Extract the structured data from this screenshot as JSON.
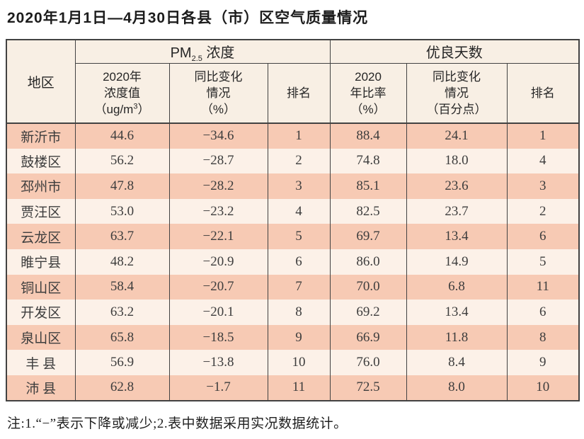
{
  "title": "2020年1月1日—4月30日各县（市）区空气质量情况",
  "table": {
    "corner_label": "地区",
    "pm_group": {
      "pre": "PM",
      "sub": "2.5",
      "post": " 浓度"
    },
    "days_group_label": "优良天数",
    "subheaders": {
      "pm_value": {
        "line1": "2020年",
        "line2": "浓度值",
        "unit_pre": "（ug/m",
        "unit_sup": "3",
        "unit_post": "）"
      },
      "pm_change": [
        "同比变化",
        "情况",
        "（%）"
      ],
      "pm_rank": "排名",
      "days_rate": [
        "2020",
        "年比率",
        "（%）"
      ],
      "days_change": [
        "同比变化",
        "情况",
        "（百分点）"
      ],
      "days_rank": "排名"
    },
    "rows": [
      {
        "region": "新沂市",
        "pm_value": "44.6",
        "pm_change": "−34.6",
        "pm_rank": "1",
        "days_rate": "88.4",
        "days_change": "24.1",
        "days_rank": "1"
      },
      {
        "region": "鼓楼区",
        "pm_value": "56.2",
        "pm_change": "−28.7",
        "pm_rank": "2",
        "days_rate": "74.8",
        "days_change": "18.0",
        "days_rank": "4"
      },
      {
        "region": "邳州市",
        "pm_value": "47.8",
        "pm_change": "−28.2",
        "pm_rank": "3",
        "days_rate": "85.1",
        "days_change": "23.6",
        "days_rank": "3"
      },
      {
        "region": "贾汪区",
        "pm_value": "53.0",
        "pm_change": "−23.2",
        "pm_rank": "4",
        "days_rate": "82.5",
        "days_change": "23.7",
        "days_rank": "2"
      },
      {
        "region": "云龙区",
        "pm_value": "63.7",
        "pm_change": "−22.1",
        "pm_rank": "5",
        "days_rate": "69.7",
        "days_change": "13.4",
        "days_rank": "6"
      },
      {
        "region": "睢宁县",
        "pm_value": "48.2",
        "pm_change": "−20.9",
        "pm_rank": "6",
        "days_rate": "86.0",
        "days_change": "14.9",
        "days_rank": "5"
      },
      {
        "region": "铜山区",
        "pm_value": "58.4",
        "pm_change": "−20.7",
        "pm_rank": "7",
        "days_rate": "70.0",
        "days_change": "6.8",
        "days_rank": "11"
      },
      {
        "region": "开发区",
        "pm_value": "63.2",
        "pm_change": "−20.1",
        "pm_rank": "8",
        "days_rate": "69.2",
        "days_change": "13.4",
        "days_rank": "6"
      },
      {
        "region": "泉山区",
        "pm_value": "65.8",
        "pm_change": "−18.5",
        "pm_rank": "9",
        "days_rate": "66.9",
        "days_change": "11.8",
        "days_rank": "8"
      },
      {
        "region": "丰 县",
        "pm_value": "56.9",
        "pm_change": "−13.8",
        "pm_rank": "10",
        "days_rate": "76.0",
        "days_change": "8.4",
        "days_rank": "9"
      },
      {
        "region": "沛 县",
        "pm_value": "62.8",
        "pm_change": "−1.7",
        "pm_rank": "11",
        "days_rate": "72.5",
        "days_change": "8.0",
        "days_rank": "10"
      }
    ]
  },
  "note": "注:1.“−”表示下降或减少;2.表中数据采用实况数据统计。"
}
